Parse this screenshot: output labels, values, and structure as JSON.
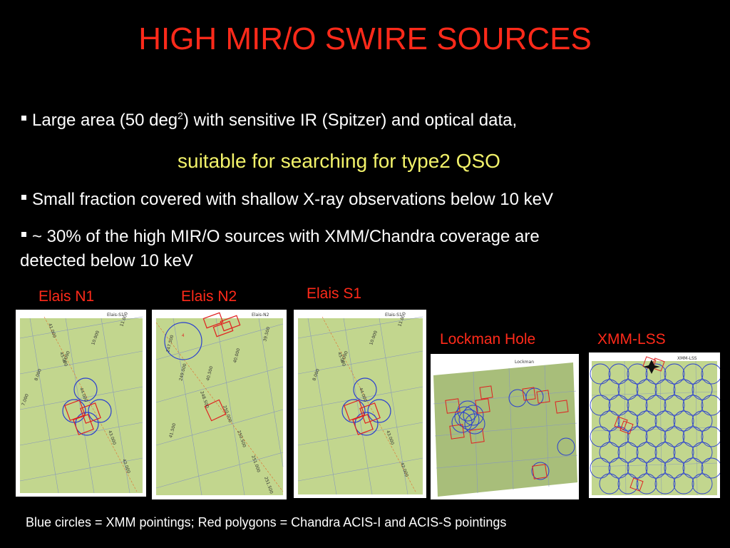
{
  "title": "HIGH MIR/O SWIRE SOURCES",
  "bullets": {
    "b1_pre": "Large area (50 deg",
    "b1_sup": "2",
    "b1_post": ") with sensitive IR (Spitzer) and optical data,",
    "b1_sub": "suitable for searching for type2 QSO",
    "b2": "Small fraction covered with shallow X-ray observations below 10 keV",
    "b3_line1": "~ 30% of the high  MIR/O sources with XMM/Chandra coverage are",
    "b3_line2": "detected  below 10 keV"
  },
  "panels": {
    "elais_n1": {
      "label": "Elais N1",
      "inner_tag": "Elais-S1",
      "ticks": [
        "11.000",
        "10.000",
        "9.000",
        "8.000",
        "7.000",
        "41.000",
        "43.000",
        "42.000",
        "44.000",
        "45.000"
      ]
    },
    "elais_n2": {
      "label": "Elais N2",
      "inner_tag": "Elais-N2",
      "ticks": [
        "247.500",
        "249.000",
        "41.500",
        "40.000",
        "39.500",
        "40.500",
        "248.500",
        "250.000",
        "250.500",
        "251.000",
        "251.500"
      ]
    },
    "elais_s1": {
      "label": "Elais S1",
      "inner_tag": "Elais-S1",
      "ticks": [
        "11.000",
        "10.000",
        "9.000",
        "8.000",
        "43.000",
        "42.000",
        "44.000",
        "45.000"
      ]
    },
    "lockman": {
      "label": "Lockman Hole",
      "inner_tag": "Lockman"
    },
    "xmm_lss": {
      "label": "XMM-LSS",
      "inner_tag": "XMM-LSS"
    }
  },
  "caption": "Blue circles = XMM pointings; Red  polygons = Chandra ACIS-I and ACIS-S pointings",
  "colors": {
    "title": "#ff2a1a",
    "subtitle": "#f2f26a",
    "field": "#c2d68e",
    "xmm": "#2a3fd0",
    "chandra": "#e02020"
  }
}
